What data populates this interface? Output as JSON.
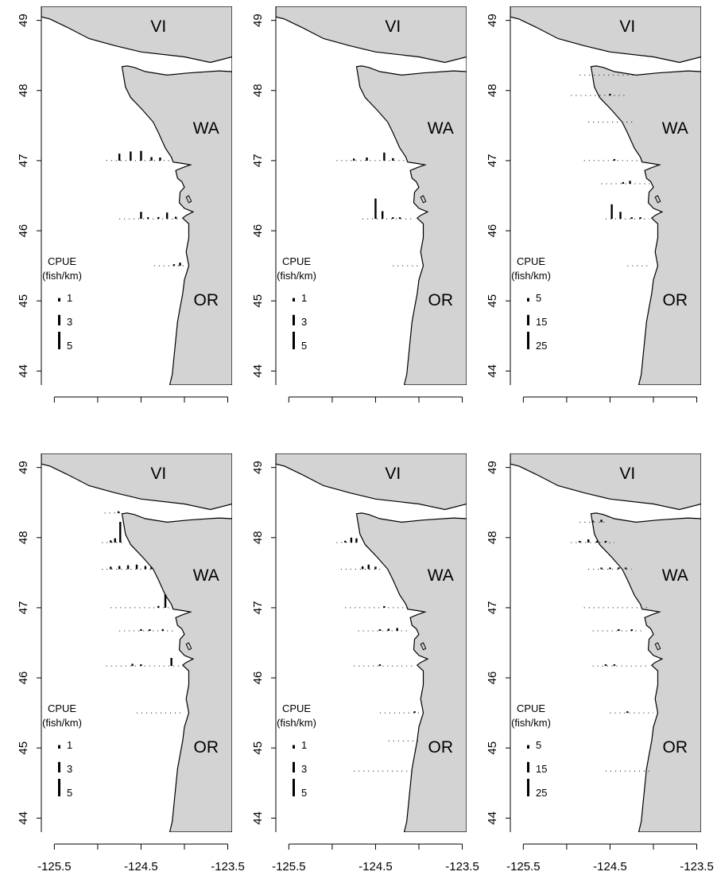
{
  "colors": {
    "land": "#d3d3d3",
    "water": "#ffffff",
    "coast": "#000000",
    "bars": "#000000"
  },
  "y_ticks": [
    "44",
    "45",
    "46",
    "47",
    "48",
    "49"
  ],
  "x_ticks": [
    "-125.5",
    "-124.5",
    "-123.5"
  ],
  "region_labels": {
    "vi": "VI",
    "wa": "WA",
    "or": "OR"
  },
  "legend": {
    "title_line1": "CPUE",
    "title_line2": "(fish/km)"
  },
  "panels": [
    {
      "id": "r1c1",
      "legend_values": [
        "1",
        "3",
        "5"
      ],
      "transects": [
        {
          "lat": 47.0,
          "lon_start": -124.9,
          "lon_end": -124.15,
          "bars": [
            {
              "lon": -124.75,
              "v": 2.0
            },
            {
              "lon": -124.62,
              "v": 2.6
            },
            {
              "lon": -124.5,
              "v": 2.8
            },
            {
              "lon": -124.38,
              "v": 1.0
            },
            {
              "lon": -124.28,
              "v": 0.9
            }
          ]
        },
        {
          "lat": 46.17,
          "lon_start": -124.75,
          "lon_end": -124.05,
          "bars": [
            {
              "lon": -124.5,
              "v": 2.0
            },
            {
              "lon": -124.42,
              "v": 0.4
            },
            {
              "lon": -124.3,
              "v": 0.5
            },
            {
              "lon": -124.2,
              "v": 1.8
            },
            {
              "lon": -124.1,
              "v": 0.6
            }
          ]
        },
        {
          "lat": 45.5,
          "lon_start": -124.35,
          "lon_end": -124.0,
          "bars": [
            {
              "lon": -124.12,
              "v": 0.4
            },
            {
              "lon": -124.05,
              "v": 0.9
            }
          ]
        }
      ]
    },
    {
      "id": "r1c2",
      "legend_values": [
        "1",
        "3",
        "5"
      ],
      "transects": [
        {
          "lat": 47.0,
          "lon_start": -124.95,
          "lon_end": -124.15,
          "bars": [
            {
              "lon": -124.75,
              "v": 0.6
            },
            {
              "lon": -124.6,
              "v": 0.9
            },
            {
              "lon": -124.4,
              "v": 2.3
            },
            {
              "lon": -124.3,
              "v": 0.7
            }
          ]
        },
        {
          "lat": 46.17,
          "lon_start": -124.65,
          "lon_end": -124.05,
          "bars": [
            {
              "lon": -124.5,
              "v": 5.8
            },
            {
              "lon": -124.42,
              "v": 2.2
            },
            {
              "lon": -124.3,
              "v": 0.3
            },
            {
              "lon": -124.22,
              "v": 0.2
            }
          ]
        },
        {
          "lat": 45.5,
          "lon_start": -124.3,
          "lon_end": -124.0,
          "bars": []
        }
      ]
    },
    {
      "id": "r1c3",
      "legend_values": [
        "5",
        "15",
        "25"
      ],
      "transects": [
        {
          "lat": 48.22,
          "lon_start": -124.85,
          "lon_end": -124.2,
          "bars": []
        },
        {
          "lat": 47.93,
          "lon_start": -124.95,
          "lon_end": -124.3,
          "bars": [
            {
              "lon": -124.5,
              "v": 0.8
            }
          ]
        },
        {
          "lat": 47.55,
          "lon_start": -124.75,
          "lon_end": -124.2,
          "bars": []
        },
        {
          "lat": 47.0,
          "lon_start": -124.8,
          "lon_end": -124.1,
          "bars": [
            {
              "lon": -124.45,
              "v": 0.6
            }
          ]
        },
        {
          "lat": 46.67,
          "lon_start": -124.6,
          "lon_end": -124.0,
          "bars": [
            {
              "lon": -124.35,
              "v": 2.4
            },
            {
              "lon": -124.27,
              "v": 4.2
            }
          ]
        },
        {
          "lat": 46.17,
          "lon_start": -124.55,
          "lon_end": -124.05,
          "bars": [
            {
              "lon": -124.48,
              "v": 20.8
            },
            {
              "lon": -124.38,
              "v": 10.0
            },
            {
              "lon": -124.25,
              "v": 0.6
            },
            {
              "lon": -124.15,
              "v": 0.4
            }
          ]
        },
        {
          "lat": 45.5,
          "lon_start": -124.3,
          "lon_end": -124.05,
          "bars": []
        }
      ]
    },
    {
      "id": "r2c1",
      "legend_values": [
        "1",
        "3",
        "5"
      ],
      "transects": [
        {
          "lat": 48.35,
          "lon_start": -124.92,
          "lon_end": -124.72,
          "bars": [
            {
              "lon": -124.76,
              "v": 0.5
            }
          ]
        },
        {
          "lat": 47.93,
          "lon_start": -124.95,
          "lon_end": -124.7,
          "bars": [
            {
              "lon": -124.85,
              "v": 0.6
            },
            {
              "lon": -124.8,
              "v": 1.2
            },
            {
              "lon": -124.74,
              "v": 5.9
            }
          ]
        },
        {
          "lat": 47.55,
          "lon_start": -124.95,
          "lon_end": -124.35,
          "bars": [
            {
              "lon": -124.85,
              "v": 0.7
            },
            {
              "lon": -124.75,
              "v": 0.9
            },
            {
              "lon": -124.65,
              "v": 1.1
            },
            {
              "lon": -124.55,
              "v": 1.3
            },
            {
              "lon": -124.45,
              "v": 0.9
            },
            {
              "lon": -124.38,
              "v": 0.6
            }
          ]
        },
        {
          "lat": 47.0,
          "lon_start": -124.85,
          "lon_end": -124.15,
          "bars": [
            {
              "lon": -124.3,
              "v": 0.5
            },
            {
              "lon": -124.22,
              "v": 3.8
            }
          ]
        },
        {
          "lat": 46.67,
          "lon_start": -124.75,
          "lon_end": -124.1,
          "bars": [
            {
              "lon": -124.5,
              "v": 0.3
            },
            {
              "lon": -124.4,
              "v": 0.4
            },
            {
              "lon": -124.25,
              "v": 0.5
            }
          ]
        },
        {
          "lat": 46.17,
          "lon_start": -124.9,
          "lon_end": -124.05,
          "bars": [
            {
              "lon": -124.6,
              "v": 0.6
            },
            {
              "lon": -124.5,
              "v": 0.4
            },
            {
              "lon": -124.15,
              "v": 2.3
            }
          ]
        },
        {
          "lat": 45.5,
          "lon_start": -124.55,
          "lon_end": -124.0,
          "bars": []
        }
      ]
    },
    {
      "id": "r2c2",
      "legend_values": [
        "1",
        "3",
        "5"
      ],
      "transects": [
        {
          "lat": 47.93,
          "lon_start": -124.95,
          "lon_end": -124.7,
          "bars": [
            {
              "lon": -124.85,
              "v": 0.5
            },
            {
              "lon": -124.78,
              "v": 1.4
            },
            {
              "lon": -124.72,
              "v": 1.2
            }
          ]
        },
        {
          "lat": 47.55,
          "lon_start": -124.9,
          "lon_end": -124.45,
          "bars": [
            {
              "lon": -124.65,
              "v": 0.8
            },
            {
              "lon": -124.58,
              "v": 1.3
            },
            {
              "lon": -124.5,
              "v": 0.7
            }
          ]
        },
        {
          "lat": 47.0,
          "lon_start": -124.85,
          "lon_end": -124.1,
          "bars": [
            {
              "lon": -124.4,
              "v": 0.3
            }
          ]
        },
        {
          "lat": 46.67,
          "lon_start": -124.7,
          "lon_end": -124.1,
          "bars": [
            {
              "lon": -124.45,
              "v": 0.4
            },
            {
              "lon": -124.35,
              "v": 0.6
            },
            {
              "lon": -124.25,
              "v": 0.8
            }
          ]
        },
        {
          "lat": 46.17,
          "lon_start": -124.75,
          "lon_end": -124.05,
          "bars": [
            {
              "lon": -124.45,
              "v": 0.3
            }
          ]
        },
        {
          "lat": 45.5,
          "lon_start": -124.45,
          "lon_end": -124.0,
          "bars": [
            {
              "lon": -124.05,
              "v": 0.4
            }
          ]
        },
        {
          "lat": 45.1,
          "lon_start": -124.35,
          "lon_end": -124.0,
          "bars": []
        },
        {
          "lat": 44.67,
          "lon_start": -124.75,
          "lon_end": -124.05,
          "bars": []
        }
      ]
    },
    {
      "id": "r2c3",
      "legend_values": [
        "5",
        "15",
        "25"
      ],
      "transects": [
        {
          "lat": 48.22,
          "lon_start": -124.85,
          "lon_end": -124.55,
          "bars": [
            {
              "lon": -124.7,
              "v": 1.5
            },
            {
              "lon": -124.6,
              "v": 3.5
            }
          ]
        },
        {
          "lat": 47.93,
          "lon_start": -124.95,
          "lon_end": -124.45,
          "bars": [
            {
              "lon": -124.85,
              "v": 2.0
            },
            {
              "lon": -124.75,
              "v": 4.5
            },
            {
              "lon": -124.65,
              "v": 2.0
            },
            {
              "lon": -124.55,
              "v": 1.5
            }
          ]
        },
        {
          "lat": 47.55,
          "lon_start": -124.75,
          "lon_end": -124.25,
          "bars": [
            {
              "lon": -124.6,
              "v": 1.5
            },
            {
              "lon": -124.5,
              "v": 2.0
            },
            {
              "lon": -124.4,
              "v": 2.5
            },
            {
              "lon": -124.32,
              "v": 1.5
            }
          ]
        },
        {
          "lat": 47.0,
          "lon_start": -124.8,
          "lon_end": -124.05,
          "bars": []
        },
        {
          "lat": 46.67,
          "lon_start": -124.7,
          "lon_end": -124.1,
          "bars": [
            {
              "lon": -124.4,
              "v": 1.2
            },
            {
              "lon": -124.25,
              "v": 0.8
            }
          ]
        },
        {
          "lat": 46.17,
          "lon_start": -124.7,
          "lon_end": -124.05,
          "bars": [
            {
              "lon": -124.55,
              "v": 1.0
            },
            {
              "lon": -124.45,
              "v": 0.8
            }
          ]
        },
        {
          "lat": 45.5,
          "lon_start": -124.5,
          "lon_end": -124.0,
          "bars": [
            {
              "lon": -124.3,
              "v": 1.0
            }
          ]
        },
        {
          "lat": 44.67,
          "lon_start": -124.55,
          "lon_end": -124.0,
          "bars": []
        }
      ]
    }
  ]
}
